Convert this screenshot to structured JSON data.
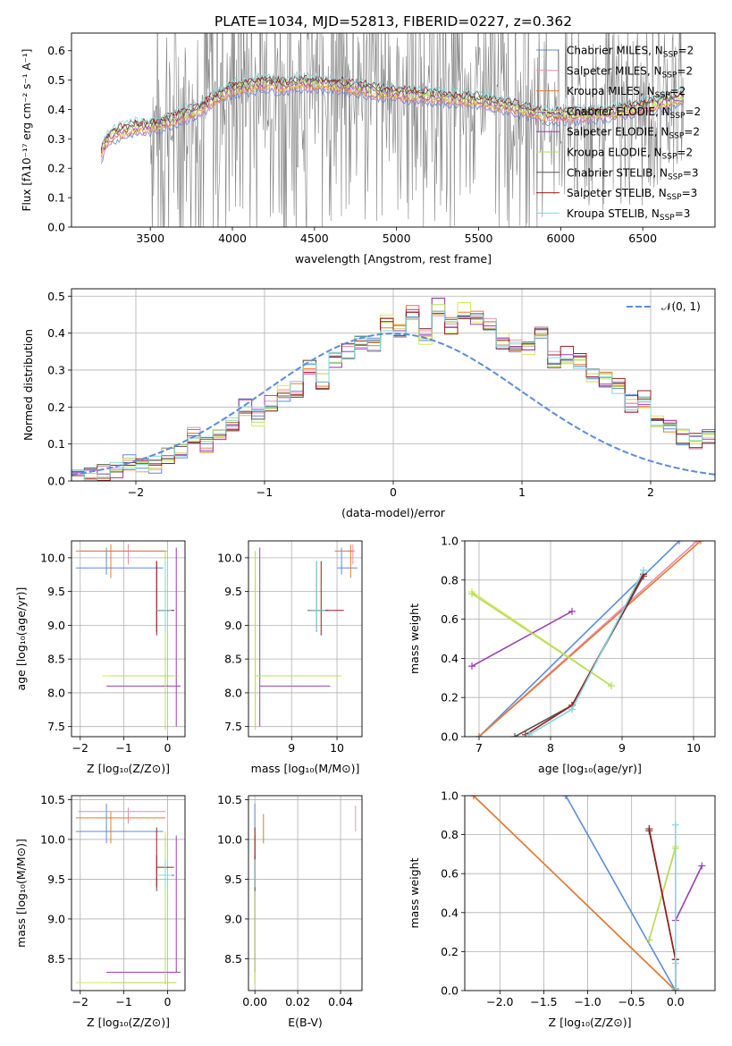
{
  "colors": {
    "chabrier_miles": "#5b8cdb",
    "salpeter_miles": "#e88cb8",
    "kroupa_miles": "#e07b2e",
    "chabrier_elodie": "#d8e85a",
    "salpeter_elodie": "#9b3fb5",
    "kroupa_elodie": "#b8dc5e",
    "chabrier_stelib": "#555555",
    "salpeter_stelib": "#9b1b1b",
    "kroupa_stelib": "#7fd8dc",
    "observed": "#808080",
    "gaussian": "#5b8cdb"
  },
  "chart_data": [
    {
      "id": "spectrum",
      "type": "line",
      "title": "PLATE=1034, MJD=52813, FIBERID=0227, z=0.362",
      "xlabel": "wavelength [Angstrom, rest frame]",
      "ylabel": "Flux [fλ10⁻¹⁷ erg cm⁻² s⁻¹ A⁻¹]",
      "xlim": [
        3020,
        6940
      ],
      "ylim": [
        0,
        0.66
      ],
      "xticks": [
        3500,
        4000,
        4500,
        5000,
        5500,
        6000,
        6500
      ],
      "yticks": [
        0.0,
        0.1,
        0.2,
        0.3,
        0.4,
        0.5,
        0.6
      ],
      "grid": false,
      "legend_position": "top-right",
      "legend": [
        {
          "label": "Chabrier MILES, N",
          "sub": "SSP",
          "tail": "=2"
        },
        {
          "label": "Salpeter MILES, N",
          "sub": "SSP",
          "tail": "=2"
        },
        {
          "label": "Kroupa MILES, N",
          "sub": "SSP",
          "tail": "=2"
        },
        {
          "label": "Chabrier ELODIE, N",
          "sub": "SSP",
          "tail": "=2"
        },
        {
          "label": "Salpeter ELODIE, N",
          "sub": "SSP",
          "tail": "=2"
        },
        {
          "label": "Kroupa ELODIE, N",
          "sub": "SSP",
          "tail": "=2"
        },
        {
          "label": "Chabrier STELIB, N",
          "sub": "SSP",
          "tail": "=3"
        },
        {
          "label": "Salpeter STELIB, N",
          "sub": "SSP",
          "tail": "=3"
        },
        {
          "label": "Kroupa STELIB, N",
          "sub": "SSP",
          "tail": "=3"
        }
      ],
      "continuum_x": [
        3200,
        3250,
        3300,
        3400,
        3500,
        3600,
        3700,
        3800,
        3900,
        4000,
        4100,
        4200,
        4300,
        4400,
        4500,
        4700,
        4900,
        5100,
        5300,
        5500,
        5700,
        5900,
        6100,
        6300,
        6500,
        6750
      ],
      "continuum_y": [
        0.25,
        0.31,
        0.32,
        0.34,
        0.34,
        0.36,
        0.38,
        0.4,
        0.44,
        0.47,
        0.48,
        0.49,
        0.48,
        0.49,
        0.49,
        0.48,
        0.46,
        0.45,
        0.44,
        0.43,
        0.41,
        0.38,
        0.38,
        0.39,
        0.41,
        0.44
      ],
      "observed_range": [
        3500,
        6750
      ]
    },
    {
      "id": "residuals",
      "type": "histogram",
      "xlabel": "(data-model)/error",
      "ylabel": "Normed distribution",
      "xlim": [
        -2.5,
        2.5
      ],
      "ylim": [
        0,
        0.52
      ],
      "xticks": [
        -2,
        -1,
        0,
        1,
        2
      ],
      "yticks": [
        0.0,
        0.1,
        0.2,
        0.3,
        0.4,
        0.5
      ],
      "grid": true,
      "legend_position": "top-right",
      "legend_label": "𝒩(0, 1)",
      "gaussian": {
        "mean": 0,
        "sigma": 1
      },
      "bin_width": 0.1,
      "bin_start": -2.5,
      "base_values": [
        0.01,
        0.015,
        0.02,
        0.03,
        0.05,
        0.04,
        0.045,
        0.07,
        0.085,
        0.12,
        0.1,
        0.13,
        0.15,
        0.2,
        0.17,
        0.21,
        0.24,
        0.25,
        0.31,
        0.27,
        0.33,
        0.35,
        0.38,
        0.37,
        0.43,
        0.41,
        0.45,
        0.39,
        0.47,
        0.42,
        0.46,
        0.44,
        0.42,
        0.38,
        0.37,
        0.36,
        0.4,
        0.33,
        0.34,
        0.32,
        0.28,
        0.27,
        0.26,
        0.21,
        0.22,
        0.16,
        0.15,
        0.12,
        0.11,
        0.12,
        0.09,
        0.08,
        0.08,
        0.06,
        0.05,
        0.04,
        0.04,
        0.03,
        0.03,
        0.025,
        0.02
      ]
    },
    {
      "id": "age_vs_Z",
      "type": "errorbar",
      "xlabel": "Z [log₁₀(Z/Z⊙)]",
      "ylabel": "age  [log₁₀(age/yr)]",
      "xlim": [
        -2.2,
        0.4
      ],
      "ylim": [
        7.35,
        10.25
      ],
      "xticks": [
        -2,
        -1,
        0
      ],
      "yticks": [
        7.5,
        8.0,
        8.5,
        9.0,
        9.5,
        10.0
      ],
      "grid": true,
      "points": [
        {
          "s": "chabrier_miles",
          "x": -1.4,
          "y": 9.85,
          "x0": -2.1,
          "x1": -0.1,
          "y0": 9.75,
          "y1": 10.15
        },
        {
          "s": "salpeter_miles",
          "x": -0.9,
          "y": 10.1,
          "x0": -2.0,
          "x1": 0.0,
          "y0": 9.9,
          "y1": 10.2
        },
        {
          "s": "kroupa_miles",
          "x": -1.3,
          "y": 10.1,
          "x0": -2.1,
          "x1": -0.05,
          "y0": 9.7,
          "y1": 10.2
        },
        {
          "s": "chabrier_elodie",
          "x": -0.05,
          "y": 8.25,
          "x0": -1.5,
          "x1": 0.25,
          "y0": 7.5,
          "y1": 10.1
        },
        {
          "s": "salpeter_elodie",
          "x": 0.2,
          "y": 8.1,
          "x0": -1.4,
          "x1": 0.3,
          "y0": 7.5,
          "y1": 10.15
        },
        {
          "s": "kroupa_elodie",
          "x": -0.05,
          "y": 8.25,
          "x0": -1.3,
          "x1": 0.2,
          "y0": 7.45,
          "y1": 10.1
        },
        {
          "s": "chabrier_stelib",
          "x": -0.25,
          "y": 9.22,
          "x0": -0.25,
          "x1": 0.15,
          "y0": 8.9,
          "y1": 9.95
        },
        {
          "s": "salpeter_stelib",
          "x": -0.25,
          "y": 9.22,
          "x0": -0.25,
          "x1": 0.15,
          "y0": 8.85,
          "y1": 9.95
        },
        {
          "s": "kroupa_stelib",
          "x": -0.05,
          "y": 9.22,
          "x0": -0.25,
          "x1": 0.1,
          "y0": 8.9,
          "y1": 9.95
        }
      ]
    },
    {
      "id": "age_vs_mass",
      "type": "errorbar",
      "xlabel": "mass [log₁₀(M/M⊙)]",
      "ylabel": "",
      "xlim": [
        8.05,
        10.55
      ],
      "ylim": [
        7.35,
        10.25
      ],
      "xticks": [
        9,
        10
      ],
      "yticks": [
        7.5,
        8.0,
        8.5,
        9.0,
        9.5,
        10.0
      ],
      "grid": true,
      "points": [
        {
          "s": "chabrier_miles",
          "x": 10.1,
          "y": 9.85,
          "x0": 10.0,
          "x1": 10.45,
          "y0": 9.75,
          "y1": 10.15
        },
        {
          "s": "salpeter_miles",
          "x": 10.35,
          "y": 10.1,
          "x0": 10.2,
          "x1": 10.4,
          "y0": 9.9,
          "y1": 10.2
        },
        {
          "s": "kroupa_miles",
          "x": 10.3,
          "y": 10.1,
          "x0": 9.95,
          "x1": 10.35,
          "y0": 9.7,
          "y1": 10.2
        },
        {
          "s": "chabrier_elodie",
          "x": 8.2,
          "y": 8.25,
          "x0": 8.2,
          "x1": 10.1,
          "y0": 7.5,
          "y1": 10.1
        },
        {
          "s": "salpeter_elodie",
          "x": 8.3,
          "y": 8.1,
          "x0": 8.3,
          "x1": 9.85,
          "y0": 7.5,
          "y1": 10.15
        },
        {
          "s": "kroupa_elodie",
          "x": 8.2,
          "y": 8.25,
          "x0": 8.2,
          "x1": 10.05,
          "y0": 7.45,
          "y1": 10.1
        },
        {
          "s": "chabrier_stelib",
          "x": 9.55,
          "y": 9.22,
          "x0": 9.35,
          "x1": 9.8,
          "y0": 8.9,
          "y1": 9.95
        },
        {
          "s": "salpeter_stelib",
          "x": 9.65,
          "y": 9.22,
          "x0": 9.4,
          "x1": 10.15,
          "y0": 8.85,
          "y1": 9.95
        },
        {
          "s": "kroupa_stelib",
          "x": 9.55,
          "y": 9.22,
          "x0": 9.4,
          "x1": 9.75,
          "y0": 8.9,
          "y1": 9.95
        }
      ]
    },
    {
      "id": "weight_vs_age",
      "type": "line",
      "xlabel": "age  [log₁₀(age/yr)]",
      "ylabel": "mass weight",
      "xlim": [
        6.8,
        10.3
      ],
      "ylim": [
        0,
        1
      ],
      "xticks": [
        7,
        8,
        9,
        10
      ],
      "yticks": [
        0.0,
        0.2,
        0.4,
        0.6,
        0.8,
        1.0
      ],
      "grid": true,
      "series": [
        {
          "s": "chabrier_miles",
          "x": [
            7.0,
            9.8
          ],
          "y": [
            0.0,
            1.0
          ]
        },
        {
          "s": "salpeter_miles",
          "x": [
            7.0,
            10.05
          ],
          "y": [
            0.0,
            1.0
          ]
        },
        {
          "s": "kroupa_miles",
          "x": [
            7.0,
            10.1
          ],
          "y": [
            0.0,
            1.0
          ]
        },
        {
          "s": "chabrier_elodie",
          "x": [
            6.9,
            8.85
          ],
          "y": [
            0.74,
            0.26
          ]
        },
        {
          "s": "salpeter_elodie",
          "x": [
            6.9,
            8.3
          ],
          "y": [
            0.36,
            0.64
          ]
        },
        {
          "s": "kroupa_elodie",
          "x": [
            6.9,
            8.85
          ],
          "y": [
            0.73,
            0.26
          ]
        },
        {
          "s": "chabrier_stelib",
          "x": [
            7.5,
            8.3,
            9.3
          ],
          "y": [
            0.0,
            0.16,
            0.82
          ]
        },
        {
          "s": "salpeter_stelib",
          "x": [
            7.65,
            8.3,
            9.3
          ],
          "y": [
            0.01,
            0.16,
            0.83
          ]
        },
        {
          "s": "kroupa_stelib",
          "x": [
            7.7,
            8.3,
            9.3
          ],
          "y": [
            0.01,
            0.14,
            0.85
          ]
        }
      ]
    },
    {
      "id": "mass_vs_Z",
      "type": "errorbar",
      "xlabel": "Z [log₁₀(Z/Z⊙)]",
      "ylabel": "mass [log₁₀(M/M⊙)]",
      "xlim": [
        -2.2,
        0.4
      ],
      "ylim": [
        8.1,
        10.55
      ],
      "xticks": [
        -2,
        -1,
        0
      ],
      "yticks": [
        8.5,
        9.0,
        9.5,
        10.0,
        10.5
      ],
      "grid": true,
      "points": [
        {
          "s": "chabrier_miles",
          "x": -1.4,
          "y": 10.1,
          "x0": -2.1,
          "x1": -0.1,
          "y0": 9.95,
          "y1": 10.45
        },
        {
          "s": "salpeter_miles",
          "x": -0.9,
          "y": 10.35,
          "x0": -2.05,
          "x1": -0.05,
          "y0": 10.2,
          "y1": 10.4
        },
        {
          "s": "kroupa_miles",
          "x": -1.3,
          "y": 10.27,
          "x0": -2.1,
          "x1": -0.05,
          "y0": 9.95,
          "y1": 10.35
        },
        {
          "s": "chabrier_elodie",
          "x": -0.05,
          "y": 8.2,
          "x0": -2.1,
          "x1": 0.2,
          "y0": 8.2,
          "y1": 10.1
        },
        {
          "s": "salpeter_elodie",
          "x": 0.2,
          "y": 8.33,
          "x0": -1.4,
          "x1": 0.3,
          "y0": 8.33,
          "y1": 10.05
        },
        {
          "s": "kroupa_elodie",
          "x": -0.05,
          "y": 8.2,
          "x0": -1.3,
          "x1": 0.2,
          "y0": 8.18,
          "y1": 10.05
        },
        {
          "s": "chabrier_stelib",
          "x": -0.25,
          "y": 9.55,
          "x0": -0.25,
          "x1": 0.15,
          "y0": 9.35,
          "y1": 9.8
        },
        {
          "s": "salpeter_stelib",
          "x": -0.25,
          "y": 9.65,
          "x0": -0.25,
          "x1": 0.15,
          "y0": 9.4,
          "y1": 10.15
        },
        {
          "s": "kroupa_stelib",
          "x": -0.05,
          "y": 9.55,
          "x0": -0.25,
          "x1": 0.1,
          "y0": 9.4,
          "y1": 9.75
        }
      ]
    },
    {
      "id": "mass_vs_ebv",
      "type": "errorbar",
      "xlabel": "E(B-V)",
      "ylabel": "",
      "xlim": [
        -0.003,
        0.05
      ],
      "ylim": [
        8.1,
        10.55
      ],
      "xticks": [
        0.0,
        0.02,
        0.04
      ],
      "xticklabels": [
        "0.00",
        "0.02",
        "0.04"
      ],
      "yticks": [
        8.5,
        9.0,
        9.5,
        10.0,
        10.5
      ],
      "grid": true,
      "points": [
        {
          "s": "chabrier_miles",
          "x": 0.0,
          "y": 10.1,
          "x0": 0.0,
          "x1": 0.0,
          "y0": 9.95,
          "y1": 10.45
        },
        {
          "s": "salpeter_miles",
          "x": 0.047,
          "y": 10.25,
          "x0": 0.047,
          "x1": 0.047,
          "y0": 10.1,
          "y1": 10.42
        },
        {
          "s": "kroupa_miles",
          "x": 0.004,
          "y": 10.15,
          "x0": 0.004,
          "x1": 0.004,
          "y0": 9.95,
          "y1": 10.32
        },
        {
          "s": "chabrier_elodie",
          "x": 0.0,
          "y": 9.0,
          "x0": 0.0,
          "x1": 0.0,
          "y0": 8.2,
          "y1": 10.1
        },
        {
          "s": "salpeter_elodie",
          "x": 0.0,
          "y": 9.2,
          "x0": 0.0,
          "x1": 0.0,
          "y0": 8.33,
          "y1": 10.05
        },
        {
          "s": "kroupa_elodie",
          "x": 0.0,
          "y": 9.0,
          "x0": 0.0,
          "x1": 0.0,
          "y0": 8.18,
          "y1": 10.05
        },
        {
          "s": "chabrier_stelib",
          "x": 0.0,
          "y": 9.55,
          "x0": 0.0,
          "x1": 0.0,
          "y0": 9.35,
          "y1": 9.8
        },
        {
          "s": "salpeter_stelib",
          "x": 0.0,
          "y": 9.65,
          "x0": 0.0,
          "x1": 0.0,
          "y0": 9.4,
          "y1": 10.15
        },
        {
          "s": "kroupa_stelib",
          "x": 0.0,
          "y": 9.55,
          "x0": 0.0,
          "x1": 0.0,
          "y0": 9.4,
          "y1": 9.75
        }
      ]
    },
    {
      "id": "weight_vs_Z",
      "type": "line",
      "xlabel": "Z [log₁₀(Z/Z⊙)]",
      "ylabel": "mass weight",
      "xlim": [
        -2.4,
        0.45
      ],
      "ylim": [
        0,
        1
      ],
      "xticks": [
        -2.0,
        -1.5,
        -1.0,
        -0.5,
        0.0
      ],
      "xticklabels": [
        "−2.0",
        "−1.5",
        "−1.0",
        "−0.5",
        "0.0"
      ],
      "yticks": [
        0.0,
        0.2,
        0.4,
        0.6,
        0.8,
        1.0
      ],
      "grid": true,
      "series": [
        {
          "s": "chabrier_miles",
          "x": [
            -1.25,
            0.0
          ],
          "y": [
            1.0,
            0.0
          ]
        },
        {
          "s": "salpeter_miles",
          "x": [
            -2.3,
            0.0
          ],
          "y": [
            1.0,
            0.0
          ]
        },
        {
          "s": "kroupa_miles",
          "x": [
            -2.3,
            0.0
          ],
          "y": [
            1.0,
            0.0
          ]
        },
        {
          "s": "chabrier_elodie",
          "x": [
            -0.3,
            0.0
          ],
          "y": [
            0.26,
            0.74
          ]
        },
        {
          "s": "salpeter_elodie",
          "x": [
            0.0,
            0.3
          ],
          "y": [
            0.36,
            0.64
          ]
        },
        {
          "s": "kroupa_elodie",
          "x": [
            -0.3,
            0.0
          ],
          "y": [
            0.26,
            0.73
          ]
        },
        {
          "s": "chabrier_stelib",
          "x": [
            -0.3,
            0.0,
            0.0
          ],
          "y": [
            0.82,
            0.16,
            0.0
          ]
        },
        {
          "s": "salpeter_stelib",
          "x": [
            -0.3,
            0.0,
            0.0
          ],
          "y": [
            0.83,
            0.16,
            0.01
          ]
        },
        {
          "s": "kroupa_stelib",
          "x": [
            0.0,
            0.0,
            0.0
          ],
          "y": [
            0.85,
            0.14,
            0.01
          ]
        }
      ]
    }
  ]
}
